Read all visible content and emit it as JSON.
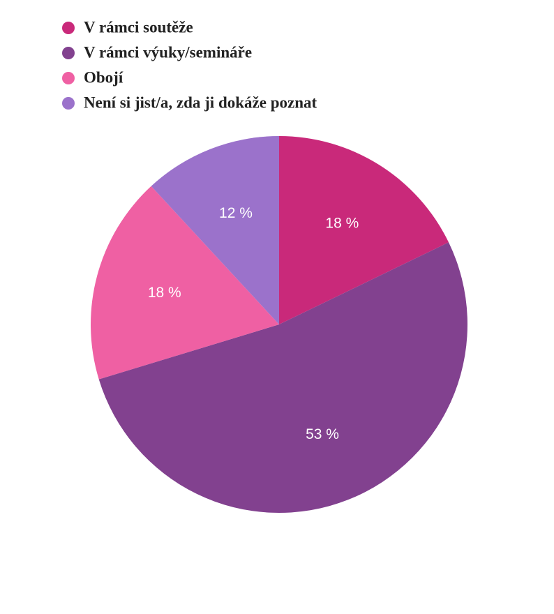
{
  "chart_data": {
    "type": "pie",
    "categories": [
      "V rámci soutěže",
      "V rámci výuky/semináře",
      "Obojí",
      "Není si jist/a, zda ji dokáže poznat"
    ],
    "values": [
      18,
      53,
      18,
      12
    ],
    "value_labels": [
      "18 %",
      "53 %",
      "18 %",
      "12 %"
    ],
    "colors": [
      "#c9297a",
      "#82418f",
      "#ef60a3",
      "#9b72cb"
    ],
    "legend": "top-left"
  }
}
